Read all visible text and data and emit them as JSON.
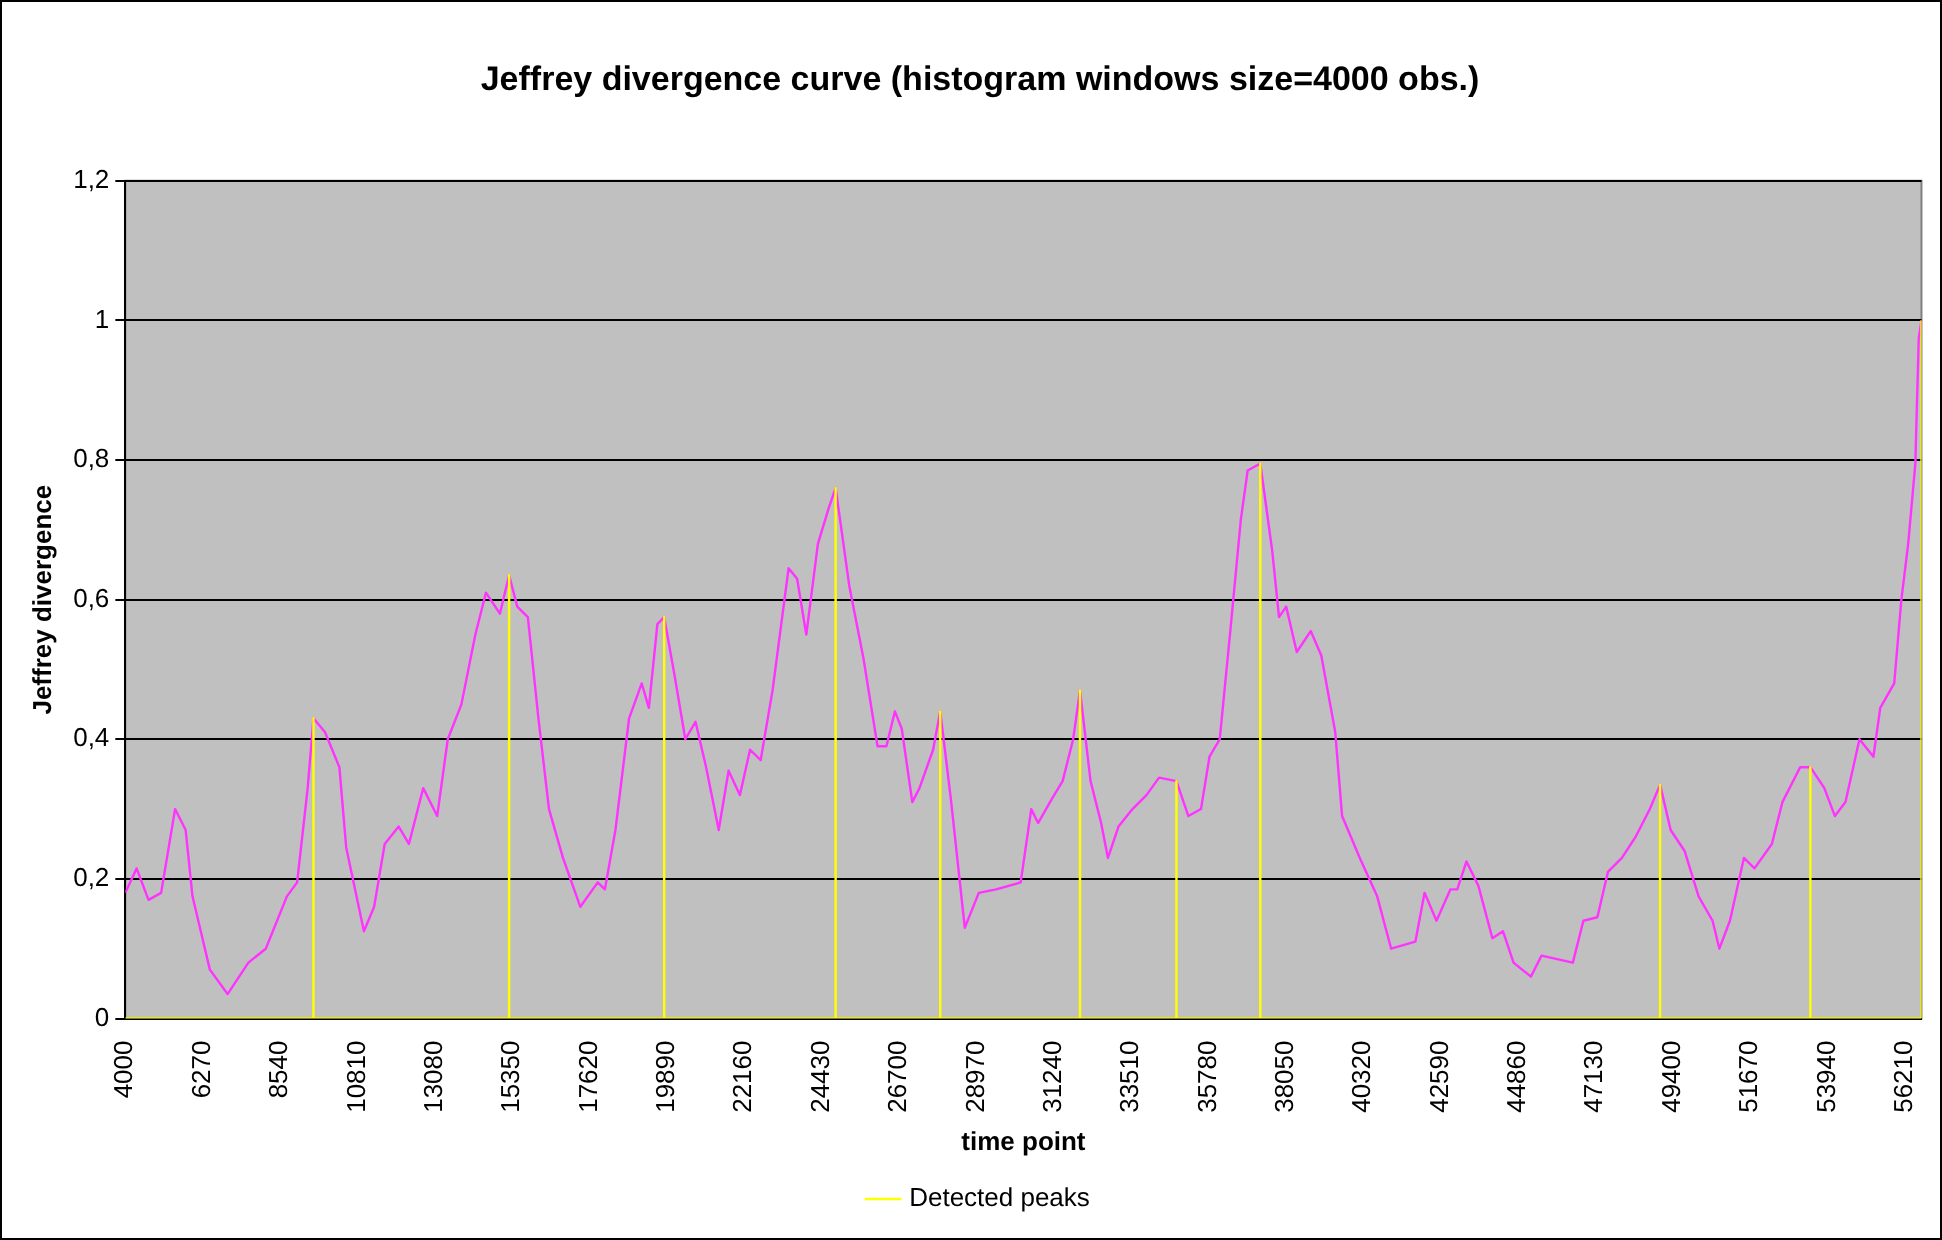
{
  "chart_data": {
    "type": "line",
    "title": "Jeffrey divergence curve (histogram windows size=4000 obs.)",
    "xlabel": "time point",
    "ylabel": "Jeffrey divergence",
    "xlim": [
      4000,
      56700
    ],
    "xticks": [
      4000,
      6270,
      8540,
      10810,
      13080,
      15350,
      17620,
      19890,
      22160,
      24430,
      26700,
      28970,
      31240,
      33510,
      35780,
      38050,
      40320,
      42590,
      44860,
      47130,
      49400,
      51670,
      53940,
      56210
    ],
    "ylim": [
      0,
      1.2
    ],
    "yticks": [
      0,
      {
        "value": 0.2,
        "label": "0,2"
      },
      {
        "value": 0.4,
        "label": "0,4"
      },
      {
        "value": 0.6,
        "label": "0,6"
      },
      {
        "value": 0.8,
        "label": "0,8"
      },
      1,
      {
        "value": 1.2,
        "label": "1,2"
      }
    ],
    "grid": "y",
    "legend": "bottom",
    "series": [
      {
        "color": "#ff33ff",
        "x": [
          4000,
          4330,
          4680,
          5050,
          5460,
          5770,
          5970,
          6480,
          7000,
          7610,
          8120,
          8740,
          9040,
          9350,
          9520,
          9860,
          10280,
          10480,
          11000,
          11300,
          11610,
          12020,
          12320,
          12740,
          13150,
          13460,
          13860,
          14270,
          14580,
          14990,
          15260,
          15500,
          15810,
          16120,
          16430,
          16840,
          17350,
          17860,
          18070,
          18380,
          18780,
          19150,
          19360,
          19610,
          19810,
          20120,
          20430,
          20730,
          21040,
          21410,
          21700,
          22030,
          22330,
          22640,
          22990,
          23460,
          23710,
          23980,
          24320,
          24630,
          24840,
          25240,
          25660,
          26070,
          26330,
          26580,
          26780,
          27090,
          27300,
          27700,
          27910,
          28220,
          28630,
          29040,
          29550,
          30270,
          30580,
          30780,
          31190,
          31500,
          31810,
          32010,
          32320,
          32630,
          32830,
          33140,
          33550,
          33960,
          34330,
          34840,
          35190,
          35560,
          35810,
          36110,
          36420,
          36730,
          36930,
          37300,
          37650,
          37850,
          38060,
          38370,
          38780,
          39090,
          39500,
          39700,
          40220,
          40730,
          41140,
          41850,
          42120,
          42470,
          42880,
          43080,
          43350,
          43700,
          44110,
          44420,
          44730,
          45240,
          45550,
          46470,
          46780,
          47190,
          47500,
          47910,
          48310,
          48730,
          49030,
          49340,
          49750,
          50160,
          50570,
          50770,
          51080,
          51490,
          51800,
          52310,
          52620,
          53140,
          53440,
          53850,
          54160,
          54470,
          54880,
          55290,
          55490,
          55900,
          56110,
          56310,
          56520,
          56620,
          56700
        ],
        "values": [
          0.18,
          0.215,
          0.17,
          0.18,
          0.3,
          0.27,
          0.175,
          0.07,
          0.035,
          0.08,
          0.1,
          0.175,
          0.195,
          0.33,
          0.43,
          0.41,
          0.36,
          0.245,
          0.125,
          0.16,
          0.25,
          0.275,
          0.25,
          0.33,
          0.29,
          0.4,
          0.45,
          0.55,
          0.61,
          0.58,
          0.635,
          0.59,
          0.575,
          0.43,
          0.3,
          0.23,
          0.16,
          0.195,
          0.185,
          0.27,
          0.43,
          0.48,
          0.445,
          0.565,
          0.575,
          0.49,
          0.4,
          0.425,
          0.36,
          0.27,
          0.355,
          0.32,
          0.385,
          0.37,
          0.47,
          0.645,
          0.63,
          0.55,
          0.68,
          0.73,
          0.76,
          0.62,
          0.515,
          0.39,
          0.39,
          0.44,
          0.415,
          0.31,
          0.33,
          0.385,
          0.44,
          0.315,
          0.13,
          0.18,
          0.185,
          0.195,
          0.3,
          0.28,
          0.315,
          0.34,
          0.4,
          0.47,
          0.34,
          0.28,
          0.23,
          0.275,
          0.3,
          0.32,
          0.345,
          0.34,
          0.29,
          0.3,
          0.375,
          0.4,
          0.555,
          0.715,
          0.785,
          0.795,
          0.67,
          0.575,
          0.59,
          0.525,
          0.555,
          0.52,
          0.41,
          0.29,
          0.23,
          0.175,
          0.1,
          0.11,
          0.18,
          0.14,
          0.185,
          0.185,
          0.225,
          0.19,
          0.115,
          0.125,
          0.08,
          0.06,
          0.09,
          0.08,
          0.14,
          0.145,
          0.21,
          0.23,
          0.26,
          0.3,
          0.335,
          0.27,
          0.24,
          0.175,
          0.14,
          0.1,
          0.14,
          0.23,
          0.215,
          0.25,
          0.31,
          0.36,
          0.36,
          0.33,
          0.29,
          0.31,
          0.4,
          0.375,
          0.445,
          0.48,
          0.6,
          0.68,
          0.795,
          0.975,
          1.0
        ]
      },
      {
        "name": "Detected peaks",
        "color": "#ffff00",
        "x": [
          4000,
          9520,
          9520,
          9520,
          15260,
          15260,
          15260,
          19810,
          19810,
          19810,
          24840,
          24840,
          24840,
          27910,
          27910,
          27910,
          32010,
          32010,
          32010,
          34840,
          34840,
          34840,
          37300,
          37300,
          37300,
          49030,
          49030,
          49030,
          53440,
          53440,
          53440,
          56700,
          56700
        ],
        "values": [
          0,
          0,
          0.43,
          0,
          0,
          0.635,
          0,
          0,
          0.575,
          0,
          0,
          0.76,
          0,
          0,
          0.44,
          0,
          0,
          0.47,
          0,
          0,
          0.34,
          0,
          0,
          0.795,
          0,
          0,
          0.335,
          0,
          0,
          0.36,
          0,
          0,
          1.0
        ]
      }
    ]
  }
}
